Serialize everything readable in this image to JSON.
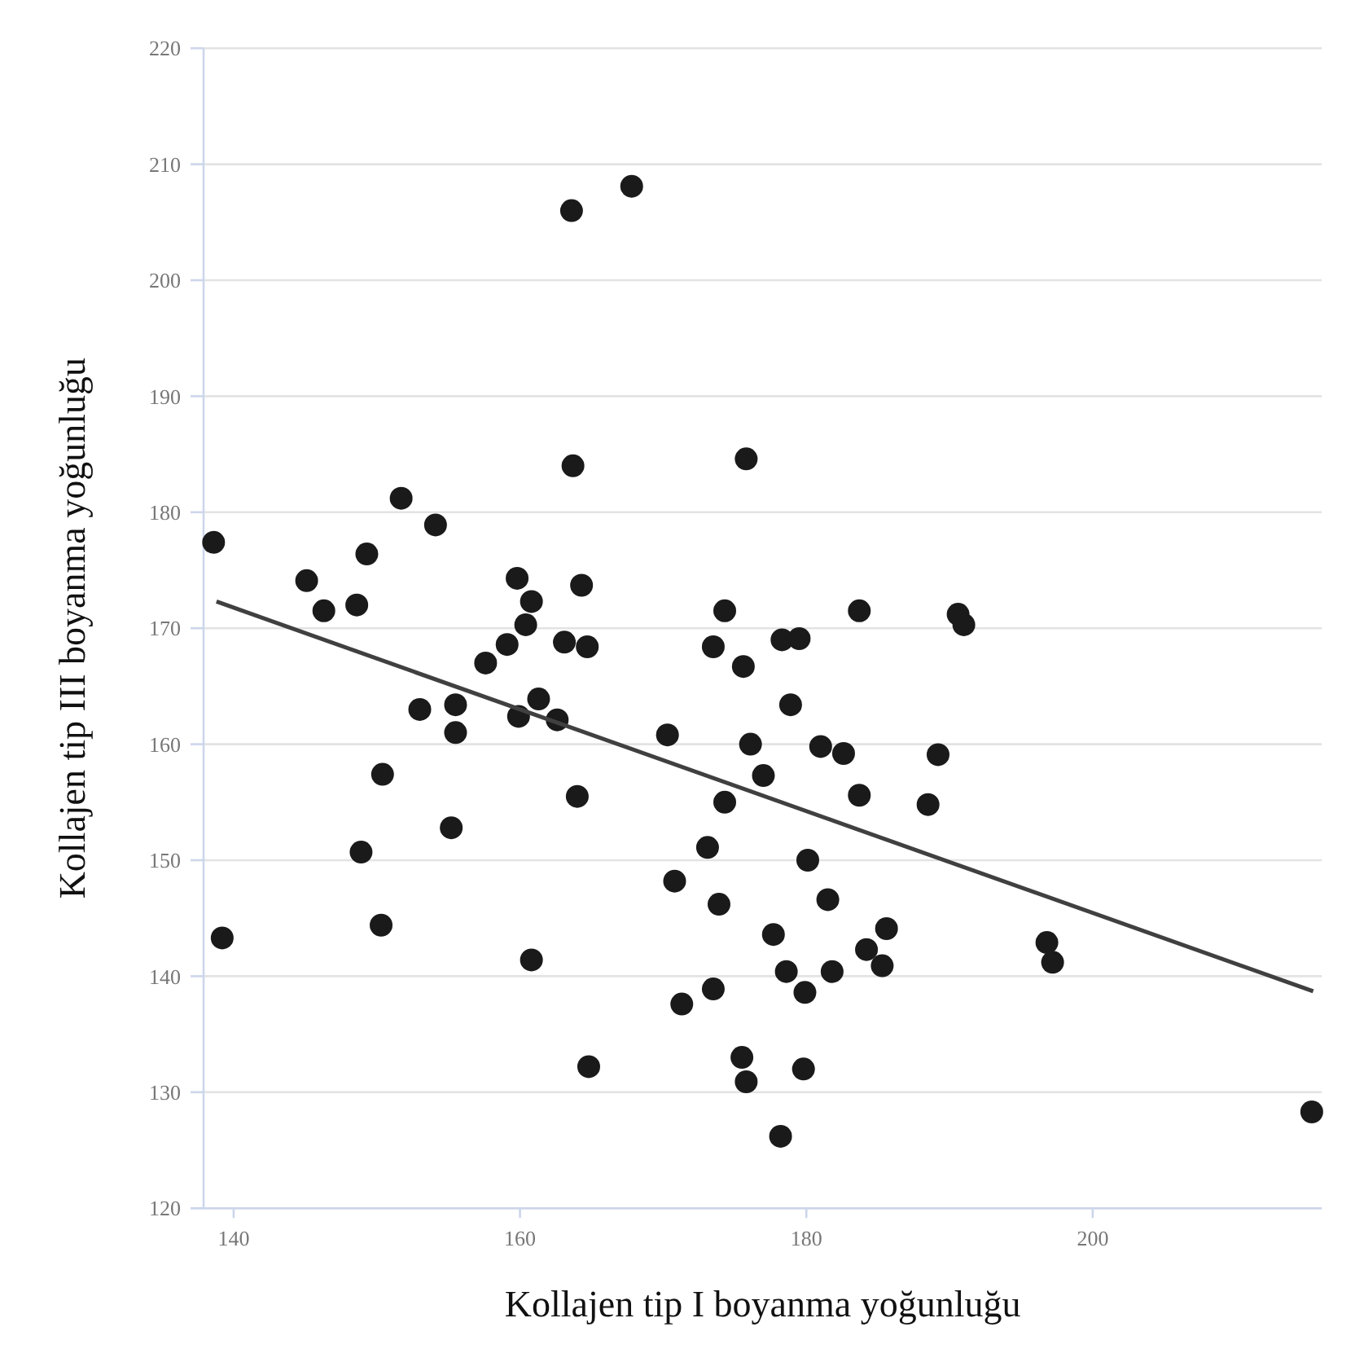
{
  "chart_data": {
    "type": "scatter",
    "xlabel": "Kollajen tip I boyanma yoğunluğu",
    "ylabel": "Kollajen tip III boyanma yoğunluğu",
    "xlim": [
      137.9,
      216
    ],
    "xticks": [
      140,
      160,
      180,
      200
    ],
    "ylim": [
      120,
      220
    ],
    "yticks": [
      120,
      130,
      140,
      150,
      160,
      170,
      180,
      190,
      200,
      210,
      220
    ],
    "grid": "y",
    "marker": "circle",
    "series": [
      {
        "color": "#1a1a1a",
        "x": [
          138.6,
          145.1,
          146.3,
          148.6,
          149.3,
          151.7,
          154.1,
          159.8,
          160.8,
          160.4,
          163.6,
          167.8,
          163.7,
          164.3,
          174.3,
          175.8,
          178.3,
          179.5,
          183.7,
          190.6,
          191.0,
          139.2,
          150.4,
          148.9,
          150.3,
          153.0,
          155.5,
          155.5,
          155.2,
          157.6,
          159.1,
          159.9,
          161.3,
          162.6,
          163.1,
          164.7,
          164.0,
          160.8,
          173.5,
          171.3,
          170.3,
          170.8,
          173.1,
          173.9,
          173.5,
          174.3,
          175.6,
          176.1,
          178.9,
          181.0,
          182.6,
          189.2,
          177.0,
          183.7,
          188.5,
          180.1,
          181.5,
          177.7,
          184.2,
          185.6,
          185.3,
          178.6,
          181.8,
          179.9,
          196.8,
          197.2,
          175.5,
          175.8,
          178.2,
          179.8,
          164.8,
          215.3
        ],
        "values": [
          177.4,
          174.1,
          171.5,
          172.0,
          176.4,
          181.2,
          178.9,
          174.3,
          172.3,
          170.3,
          206.0,
          208.1,
          184.0,
          173.7,
          171.5,
          184.6,
          169.0,
          169.1,
          171.5,
          171.2,
          170.3,
          143.3,
          157.4,
          150.7,
          144.4,
          163.0,
          163.4,
          161.0,
          152.8,
          167.0,
          168.6,
          162.4,
          163.9,
          162.1,
          168.8,
          168.4,
          155.5,
          141.4,
          138.9,
          137.6,
          160.8,
          148.2,
          151.1,
          146.2,
          168.4,
          155.0,
          166.7,
          160.0,
          163.4,
          159.8,
          159.2,
          159.1,
          157.3,
          155.6,
          154.8,
          150.0,
          146.6,
          143.6,
          142.3,
          144.1,
          140.9,
          140.4,
          140.4,
          138.6,
          142.9,
          141.2,
          133.0,
          130.9,
          126.2,
          132.0,
          132.2,
          128.3
        ]
      },
      {
        "type": "line",
        "color": "#404040",
        "x": [
          138.8,
          215.4
        ],
        "values": [
          172.3,
          138.7
        ],
        "marker": "none",
        "line_style": "solid"
      }
    ]
  }
}
